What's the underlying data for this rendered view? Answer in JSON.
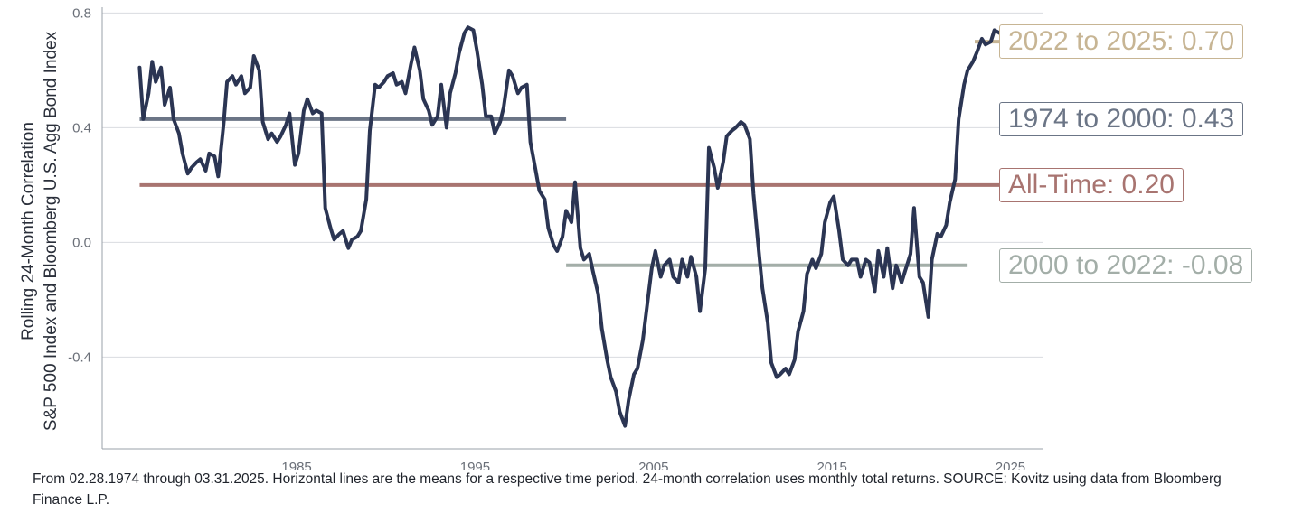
{
  "chart_data": {
    "type": "line",
    "ylabel_line1": "Rolling 24-Month Correlation",
    "ylabel_line2": "S&P 500 Index and Bloomberg U.S. Agg Bond Index",
    "xlim": [
      1974.1,
      2026.8
    ],
    "ylim": [
      -0.72,
      0.82
    ],
    "x_ticks": [
      1985,
      1995,
      2005,
      2015,
      2025
    ],
    "x_tick_labels": [
      "1985",
      "1995",
      "2005",
      "2015",
      "2025"
    ],
    "y_ticks": [
      -0.4,
      0.0,
      0.4,
      0.8
    ],
    "y_tick_labels": [
      "-0.4",
      "0.0",
      "0.4",
      "0.8"
    ],
    "grid": "horizontal",
    "series": [
      {
        "color": "#2b3553",
        "x": [
          1976.2,
          1976.4,
          1976.7,
          1976.9,
          1977.1,
          1977.4,
          1977.6,
          1977.9,
          1978.1,
          1978.4,
          1978.6,
          1978.9,
          1979.1,
          1979.4,
          1979.6,
          1979.9,
          1980.1,
          1980.4,
          1980.6,
          1980.9,
          1981.1,
          1981.4,
          1981.6,
          1981.9,
          1982.1,
          1982.4,
          1982.6,
          1982.9,
          1983.1,
          1983.4,
          1983.6,
          1983.9,
          1984.1,
          1984.4,
          1984.6,
          1984.9,
          1985.1,
          1985.4,
          1985.6,
          1985.9,
          1986.1,
          1986.4,
          1986.6,
          1986.9,
          1987.1,
          1987.4,
          1987.6,
          1987.9,
          1988.1,
          1988.4,
          1988.6,
          1988.9,
          1989.1,
          1989.4,
          1989.6,
          1989.9,
          1990.1,
          1990.4,
          1990.6,
          1990.9,
          1991.1,
          1991.4,
          1991.6,
          1991.9,
          1992.1,
          1992.4,
          1992.6,
          1992.9,
          1993.1,
          1993.4,
          1993.6,
          1993.9,
          1994.1,
          1994.4,
          1994.6,
          1994.9,
          1995.1,
          1995.4,
          1995.6,
          1995.9,
          1996.1,
          1996.4,
          1996.6,
          1996.9,
          1997.1,
          1997.4,
          1997.6,
          1997.9,
          1998.1,
          1998.4,
          1998.6,
          1998.9,
          1999.1,
          1999.4,
          1999.6,
          1999.9,
          2000.1,
          2000.4,
          2000.6,
          2000.9,
          2001.1,
          2001.4,
          2001.6,
          2001.9,
          2002.1,
          2002.4,
          2002.6,
          2002.9,
          2003.1,
          2003.4,
          2003.6,
          2003.9,
          2004.1,
          2004.4,
          2004.6,
          2004.9,
          2005.1,
          2005.4,
          2005.6,
          2005.9,
          2006.1,
          2006.4,
          2006.6,
          2006.9,
          2007.1,
          2007.4,
          2007.6,
          2007.9,
          2008.1,
          2008.4,
          2008.6,
          2008.9,
          2009.1,
          2009.4,
          2009.6,
          2009.9,
          2010.1,
          2010.4,
          2010.6,
          2010.9,
          2011.1,
          2011.4,
          2011.6,
          2011.9,
          2012.1,
          2012.4,
          2012.6,
          2012.9,
          2013.1,
          2013.4,
          2013.6,
          2013.9,
          2014.1,
          2014.4,
          2014.6,
          2014.9,
          2015.1,
          2015.4,
          2015.6,
          2015.9,
          2016.1,
          2016.4,
          2016.6,
          2016.9,
          2017.1,
          2017.4,
          2017.6,
          2017.9,
          2018.1,
          2018.4,
          2018.6,
          2018.9,
          2019.1,
          2019.4,
          2019.6,
          2019.9,
          2020.1,
          2020.4,
          2020.6,
          2020.9,
          2021.1,
          2021.4,
          2021.6,
          2021.9,
          2022.1,
          2022.4,
          2022.6,
          2022.9,
          2023.1,
          2023.4,
          2023.6,
          2023.9,
          2024.1,
          2024.4,
          2024.6,
          2024.9,
          2025.1,
          2025.2
        ],
        "y": [
          0.61,
          0.43,
          0.52,
          0.63,
          0.56,
          0.61,
          0.48,
          0.54,
          0.43,
          0.38,
          0.31,
          0.24,
          0.26,
          0.28,
          0.29,
          0.25,
          0.31,
          0.3,
          0.23,
          0.41,
          0.56,
          0.58,
          0.55,
          0.58,
          0.52,
          0.54,
          0.65,
          0.6,
          0.42,
          0.36,
          0.38,
          0.35,
          0.37,
          0.41,
          0.45,
          0.27,
          0.31,
          0.46,
          0.5,
          0.45,
          0.46,
          0.45,
          0.12,
          0.05,
          0.01,
          0.03,
          0.04,
          -0.02,
          0.01,
          0.02,
          0.04,
          0.15,
          0.39,
          0.55,
          0.54,
          0.56,
          0.58,
          0.59,
          0.55,
          0.56,
          0.52,
          0.62,
          0.68,
          0.6,
          0.5,
          0.46,
          0.41,
          0.44,
          0.55,
          0.4,
          0.52,
          0.59,
          0.66,
          0.73,
          0.75,
          0.74,
          0.67,
          0.55,
          0.44,
          0.44,
          0.38,
          0.42,
          0.47,
          0.6,
          0.58,
          0.52,
          0.54,
          0.55,
          0.35,
          0.25,
          0.18,
          0.15,
          0.05,
          -0.01,
          -0.03,
          0.02,
          0.11,
          0.07,
          0.21,
          -0.02,
          -0.06,
          -0.04,
          -0.1,
          -0.18,
          -0.3,
          -0.41,
          -0.47,
          -0.52,
          -0.59,
          -0.64,
          -0.55,
          -0.46,
          -0.44,
          -0.34,
          -0.24,
          -0.09,
          -0.03,
          -0.12,
          -0.08,
          -0.06,
          -0.12,
          -0.14,
          -0.06,
          -0.12,
          -0.05,
          -0.12,
          -0.24,
          -0.09,
          0.33,
          0.26,
          0.19,
          0.28,
          0.37,
          0.39,
          0.4,
          0.42,
          0.41,
          0.36,
          0.17,
          -0.03,
          -0.16,
          -0.28,
          -0.42,
          -0.47,
          -0.46,
          -0.44,
          -0.46,
          -0.41,
          -0.31,
          -0.24,
          -0.11,
          -0.06,
          -0.09,
          -0.04,
          0.07,
          0.14,
          0.16,
          0.04,
          -0.06,
          -0.08,
          -0.06,
          -0.06,
          -0.12,
          -0.06,
          -0.07,
          -0.17,
          -0.03,
          -0.12,
          -0.02,
          -0.16,
          -0.08,
          -0.14,
          -0.1,
          -0.04,
          0.12,
          -0.12,
          -0.14,
          -0.26,
          -0.06,
          0.03,
          0.02,
          0.06,
          0.14,
          0.22,
          0.43,
          0.55,
          0.6,
          0.63,
          0.66,
          0.71,
          0.69,
          0.7,
          0.74,
          0.73,
          0.72,
          0.74,
          0.68,
          0.66
        ]
      }
    ],
    "mean_lines": [
      {
        "x_start": 1976.2,
        "x_end": 2000.1,
        "y": 0.43,
        "color": "#6b7586",
        "label": "1974 to 2000: 0.43"
      },
      {
        "x_start": 1976.2,
        "x_end": 2025.2,
        "y": 0.2,
        "color": "#a87470",
        "label": "All-Time: 0.20"
      },
      {
        "x_start": 2000.1,
        "x_end": 2022.6,
        "y": -0.08,
        "color": "#a3aea8",
        "label": "2000 to 2022: -0.08"
      },
      {
        "x_start": 2023.0,
        "x_end": 2025.2,
        "y": 0.7,
        "color": "#c7b594",
        "label": "2022 to 2025: 0.70"
      }
    ]
  },
  "footnote": "From 02.28.1974 through 03.31.2025. Horizontal lines are the means for a respective time period. 24-month correlation uses monthly total returns. SOURCE: Kovitz using data from Bloomberg Finance L.P."
}
